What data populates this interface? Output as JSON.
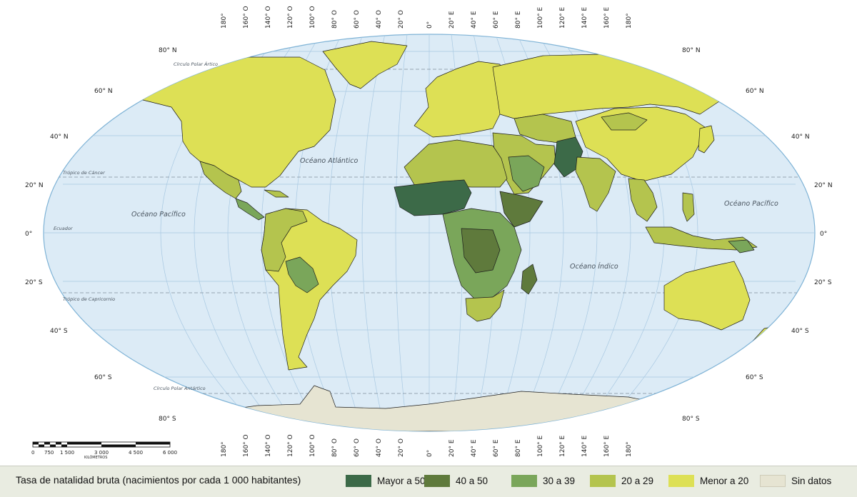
{
  "map": {
    "oceans": [
      "Océano Atlántico",
      "Océano Pacífico",
      "Océano Pacífico",
      "Océano Índico"
    ],
    "reference_lines": [
      "Círculo Polar Ártico",
      "Trópico de Cáncer",
      "Ecuador",
      "Trópico de Capricornio",
      "Círculo Polar Antártico"
    ],
    "lon_labels": [
      "180°",
      "160° O",
      "140° O",
      "120° O",
      "100° O",
      "80° O",
      "60° O",
      "40° O",
      "20° O",
      "0°",
      "20° E",
      "40° E",
      "60° E",
      "80° E",
      "100° E",
      "120° E",
      "140° E",
      "160° E",
      "180°"
    ],
    "lat_labels_left": [
      "80° N",
      "60° N",
      "40° N",
      "20° N",
      "0°",
      "20° S",
      "40° S",
      "60° S",
      "80° S"
    ],
    "lat_labels_right": [
      "80° N",
      "60° N",
      "40° N",
      "20° N",
      "0°",
      "20° S",
      "40° S",
      "60° S",
      "80° S"
    ],
    "scale": {
      "ticks": [
        "0",
        "750",
        "1 500",
        "3 000",
        "4 500",
        "6 000"
      ],
      "unit": "KILÓMETROS"
    }
  },
  "legend": {
    "title": "Tasa de natalidad bruta (nacimientos por cada 1 000 habitantes)",
    "items": [
      {
        "label": "Mayor a 50",
        "color": "#3c6a48"
      },
      {
        "label": "40 a 50",
        "color": "#5f7a3c"
      },
      {
        "label": "30 a 39",
        "color": "#7aa65a"
      },
      {
        "label": "20 a 29",
        "color": "#b4c44e"
      },
      {
        "label": "Menor a 20",
        "color": "#dde055"
      },
      {
        "label": "Sin datos",
        "color": "#e6e4d2"
      }
    ]
  }
}
